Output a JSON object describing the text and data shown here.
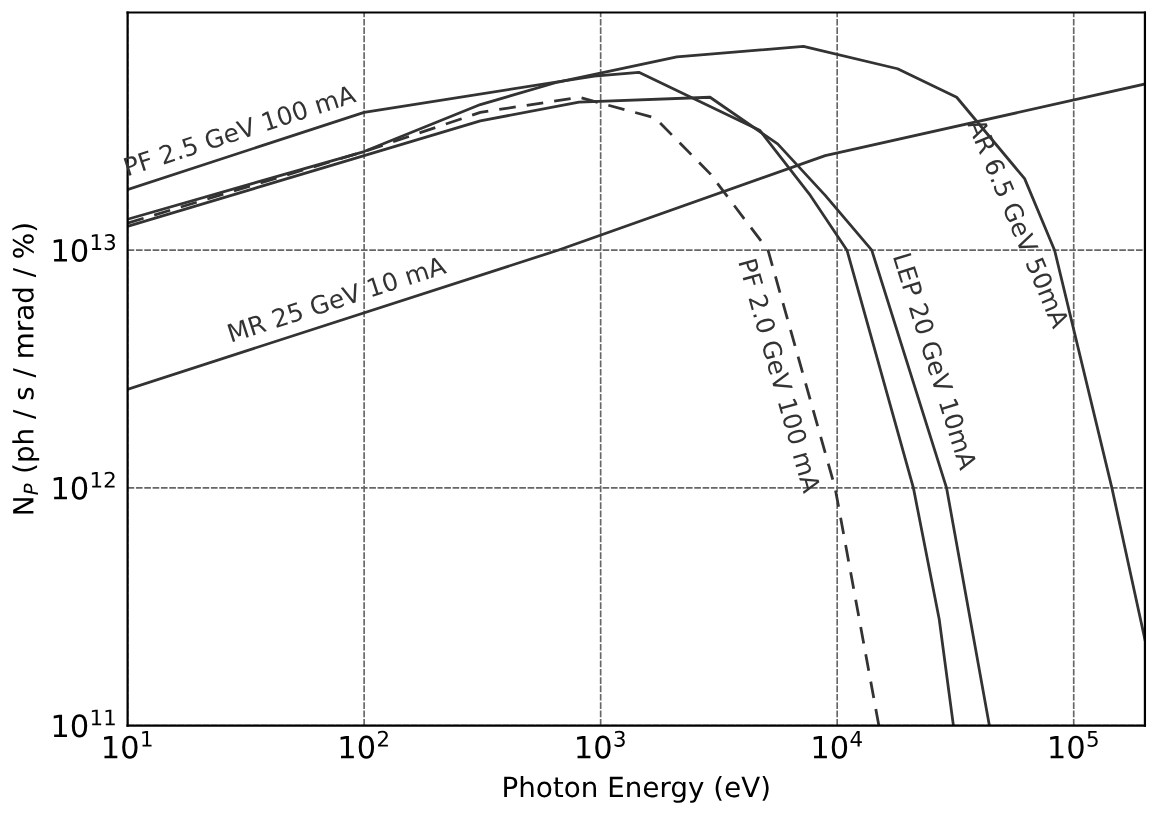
{
  "chart_data": {
    "type": "line",
    "xlabel": "Photon Energy (eV)",
    "ylabel": "N$_{P}$ (ph / s / mrad / %)",
    "log": "xy",
    "grid": true,
    "marker": "none",
    "xlim": [
      10,
      200000
    ],
    "ylim": [
      100000000000.0,
      100000000000000.0
    ],
    "xticks": [
      {
        "value": 10,
        "label": "10$^{1}$"
      },
      {
        "value": 100,
        "label": "10$^{2}$"
      },
      {
        "value": 1000,
        "label": "10$^{3}$"
      },
      {
        "value": 10000,
        "label": "10$^{4}$"
      },
      {
        "value": 100000,
        "label": "10$^{5}$"
      }
    ],
    "yticks": [
      {
        "value": 100000000000.0,
        "label": "10$^{11}$"
      },
      {
        "value": 1000000000000.0,
        "label": "10$^{12}$"
      },
      {
        "value": 10000000000000.0,
        "label": "10$^{13}$"
      }
    ],
    "series": [
      {
        "name": "PF 2.5 GeV 100 mA",
        "color": "#333333",
        "line_style": "solid",
        "x": [
          10,
          100,
          940,
          1450,
          4700,
          7700,
          11000,
          21000,
          27000,
          31000
        ],
        "values": [
          18000000000000.0,
          38000000000000.0,
          54000000000000.0,
          56000000000000.0,
          32000000000000.0,
          17000000000000.0,
          10000000000000.0,
          1000000000000.0,
          280000000000.0,
          100000000000.0
        ]
      },
      {
        "name": "MR 25 GeV 10 mA",
        "color": "#333333",
        "line_style": "solid",
        "x": [
          10,
          660,
          8900,
          200000
        ],
        "values": [
          2600000000000.0,
          10000000000000.0,
          25000000000000.0,
          50000000000000.0
        ]
      },
      {
        "name": "LEP 20 GeV 10mA",
        "color": "#333333",
        "line_style": "solid",
        "x": [
          10,
          100,
          310,
          810,
          2900,
          5600,
          8900,
          14000,
          29000,
          44000
        ],
        "values": [
          12600000000000.0,
          25000000000000.0,
          35000000000000.0,
          42000000000000.0,
          44000000000000.0,
          28000000000000.0,
          17000000000000.0,
          10000000000000.0,
          1000000000000.0,
          100000000000.0
        ]
      },
      {
        "name": "PF 2.0 GeV 100 mA",
        "color": "#333333",
        "line_style": "dashed",
        "x": [
          10,
          100,
          310,
          810,
          1700,
          2900,
          5100,
          9800,
          15000
        ],
        "values": [
          13000000000000.0,
          26000000000000.0,
          38000000000000.0,
          44000000000000.0,
          36000000000000.0,
          21000000000000.0,
          10000000000000.0,
          1000000000000.0,
          100000000000.0
        ]
      },
      {
        "name": "AR 6.5 GeV 50mA",
        "color": "#333333",
        "line_style": "solid",
        "x": [
          10,
          100,
          310,
          660,
          2100,
          7200,
          18000,
          32000,
          62000,
          83000,
          145000,
          200000
        ],
        "values": [
          13500000000000.0,
          26000000000000.0,
          41000000000000.0,
          51000000000000.0,
          65000000000000.0,
          72000000000000.0,
          58000000000000.0,
          44000000000000.0,
          20000000000000.0,
          10000000000000.0,
          1000000000000.0,
          230000000000.0
        ]
      }
    ]
  }
}
